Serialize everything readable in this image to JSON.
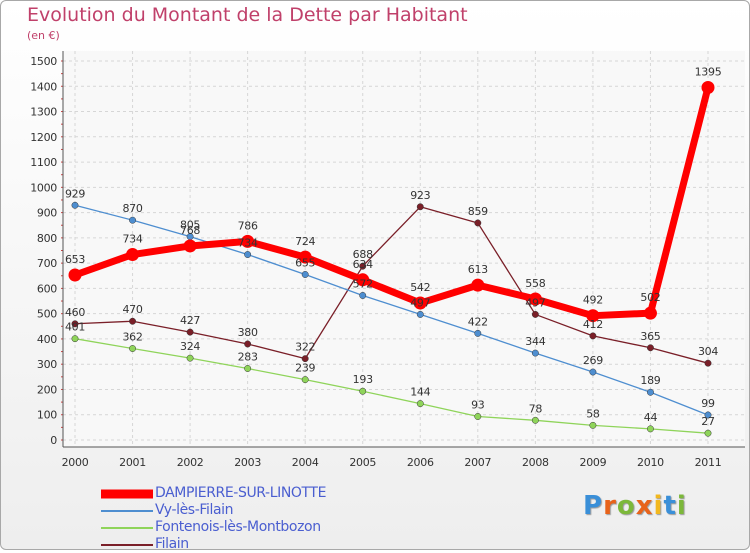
{
  "header": {
    "title": "Evolution du Montant de la Dette par Habitant",
    "unit": "(en €)"
  },
  "logo": {
    "letters": [
      "P",
      "r",
      "o",
      "x",
      "i",
      "t",
      "i"
    ],
    "colors": [
      "#3a8fd8",
      "#e8631a",
      "#7cb83a",
      "#e8631a",
      "#f2b81e",
      "#3a8fd8",
      "#7cb83a"
    ]
  },
  "chart_data": {
    "type": "line",
    "title": "Evolution du Montant de la Dette par Habitant",
    "ylabel": "(en €)",
    "x": [
      "2000",
      "2001",
      "2002",
      "2003",
      "2004",
      "2005",
      "2006",
      "2007",
      "2008",
      "2009",
      "2010",
      "2011"
    ],
    "ylim": [
      0,
      1500
    ],
    "yticks": [
      0,
      100,
      200,
      300,
      400,
      500,
      600,
      700,
      800,
      900,
      1000,
      1100,
      1200,
      1300,
      1400,
      1500
    ],
    "grid": true,
    "legend_placement": "bottom-left",
    "series": [
      {
        "name": "DAMPIERRE-SUR-LINOTTE",
        "color": "#ff0000",
        "values": [
          653,
          734,
          768,
          786,
          724,
          634,
          542,
          613,
          558,
          492,
          502,
          1395
        ]
      },
      {
        "name": "Vy-lès-Filain",
        "color": "#4e8ed0",
        "values": [
          929,
          870,
          805,
          734,
          655,
          572,
          497,
          422,
          344,
          269,
          189,
          99
        ]
      },
      {
        "name": "Fontenois-lès-Montbozon",
        "color": "#8fd45a",
        "values": [
          401,
          362,
          324,
          283,
          239,
          193,
          144,
          93,
          78,
          58,
          44,
          27
        ]
      },
      {
        "name": "Filain",
        "color": "#7a1f28",
        "values": [
          460,
          470,
          427,
          380,
          322,
          688,
          923,
          859,
          497,
          412,
          365,
          304
        ]
      }
    ]
  }
}
